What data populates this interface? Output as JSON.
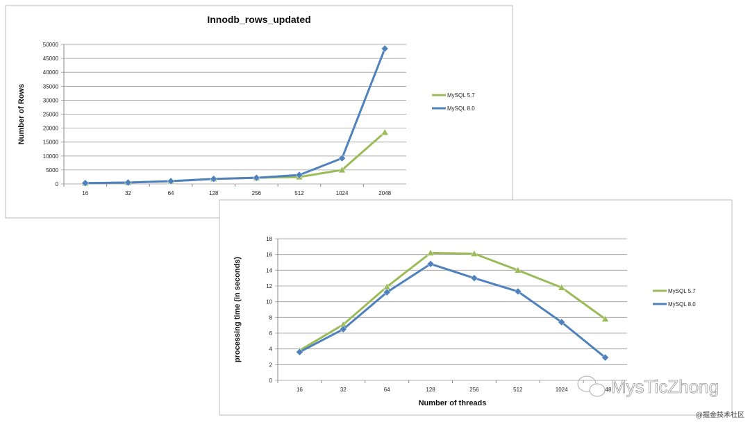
{
  "chart_data": [
    {
      "type": "line",
      "title": "Innodb_rows_updated",
      "xlabel": "",
      "ylabel": "Number of Rows",
      "categories": [
        "16",
        "32",
        "64",
        "128",
        "256",
        "512",
        "1024",
        "2048"
      ],
      "ylim": [
        0,
        50000
      ],
      "yticks": [
        0,
        5000,
        10000,
        15000,
        20000,
        25000,
        30000,
        35000,
        40000,
        45000,
        50000
      ],
      "grid": true,
      "legend": "right",
      "series": [
        {
          "name": "MySQL 5.7",
          "color": "#9bbb59",
          "marker": "triangle",
          "values": [
            300,
            500,
            1000,
            1800,
            2200,
            2500,
            5000,
            18500
          ]
        },
        {
          "name": "MySQL 8.0",
          "color": "#4f81bd",
          "marker": "diamond",
          "values": [
            300,
            500,
            1000,
            1800,
            2200,
            3200,
            9200,
            48500
          ]
        }
      ]
    },
    {
      "type": "line",
      "title": "",
      "xlabel": "Number of threads",
      "ylabel": "processing time (in seconds)",
      "categories": [
        "16",
        "32",
        "64",
        "128",
        "256",
        "512",
        "1024",
        "2048"
      ],
      "ylim": [
        0,
        18
      ],
      "yticks": [
        0,
        2,
        4,
        6,
        8,
        10,
        12,
        14,
        16,
        18
      ],
      "grid": true,
      "legend": "right",
      "series": [
        {
          "name": "MySQL 5.7",
          "color": "#9bbb59",
          "marker": "triangle",
          "values": [
            3.8,
            7.1,
            11.9,
            16.2,
            16.1,
            14.0,
            11.8,
            7.8
          ]
        },
        {
          "name": "MySQL 8.0",
          "color": "#4f81bd",
          "marker": "diamond",
          "values": [
            3.6,
            6.5,
            11.2,
            14.8,
            13.0,
            11.3,
            7.4,
            2.9
          ]
        }
      ]
    }
  ],
  "watermark": {
    "handle": "MysTicZhong",
    "community": "@掘金技术社区"
  }
}
